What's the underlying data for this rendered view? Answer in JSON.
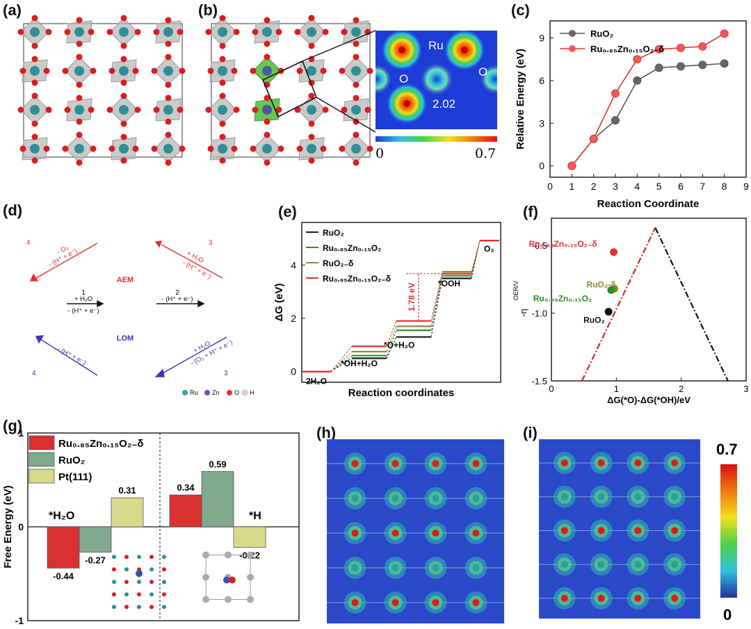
{
  "panels": {
    "a": {
      "label": "(a)"
    },
    "b": {
      "label": "(b)",
      "atom_ru": "Ru",
      "atom_o1": "O",
      "atom_o2": "O",
      "bond_length": "2.02",
      "scale_min": "0",
      "scale_max": "0.7"
    },
    "d": {
      "label": "(d)",
      "aem": "AEM",
      "lom": "LOM",
      "step1_num": "1",
      "step1_a": "+ H₂O",
      "step1_b": "- (H⁺ + e⁻)",
      "step2_num": "2",
      "step2_a": "- (H⁺ + e⁻)",
      "aem3_num": "3",
      "aem3_a": "+ H₂O",
      "aem3_b": "- (H⁺ + e⁻)",
      "aem4_num": "4",
      "aem4_a": "- O₂",
      "aem4_b": "- (H⁺ + e⁻)",
      "lom3_num": "3",
      "lom3_a": "+ H₂O",
      "lom3_b": "- (O₂ + H⁺ + e⁻)",
      "lom4_num": "4",
      "lom4_a": "- (H⁺ + e⁻)",
      "legend": [
        "Ru",
        "Zn",
        "O",
        "H"
      ]
    },
    "h": {
      "label": "(h)"
    },
    "i": {
      "label": "(i)",
      "scale_max": "0.7",
      "scale_min": "0"
    }
  },
  "chart_data": [
    {
      "id": "c",
      "label": "(c)",
      "type": "line",
      "xlabel": "Reaction Coordinate",
      "ylabel": "Relative Energy (eV)",
      "xlim": [
        0,
        9
      ],
      "ylim": [
        -0.8,
        10.2
      ],
      "xticks": [
        0,
        1,
        2,
        3,
        4,
        5,
        6,
        7,
        8,
        9
      ],
      "yticks": [
        0,
        3,
        6,
        9
      ],
      "series": [
        {
          "name": "RuO₂",
          "color": "#555555",
          "x": [
            1,
            2,
            3,
            4,
            5,
            6,
            7,
            8
          ],
          "y": [
            0,
            1.9,
            3.2,
            6.0,
            6.9,
            7.0,
            7.1,
            7.2
          ]
        },
        {
          "name": "Ru₀.₈₅Zn₀.₁₅O₂₋δ",
          "color": "#e83030",
          "x": [
            1,
            2,
            3,
            4,
            5,
            6,
            7,
            8
          ],
          "y": [
            0,
            1.9,
            5.1,
            7.5,
            8.2,
            8.3,
            8.4,
            9.3
          ]
        }
      ],
      "legend": "top-left"
    },
    {
      "id": "e",
      "label": "(e)",
      "type": "line",
      "xlabel": "Reaction coordinates",
      "ylabel": "ΔG (eV)",
      "ylim": [
        -0.4,
        5.6
      ],
      "yticks": [
        0,
        2,
        4
      ],
      "steps": [
        "2H₂O",
        "*OH+H₂O",
        "*O+H₂O",
        "*OOH",
        "O₂"
      ],
      "series": [
        {
          "name": "RuO₂",
          "color": "#1a1a1a",
          "y": [
            0,
            0.5,
            1.3,
            3.5,
            4.92
          ]
        },
        {
          "name": "Ru₀.₈₅Zn₀.₁₅O₂",
          "color": "#2e8b2e",
          "y": [
            0,
            0.6,
            1.55,
            3.6,
            4.92
          ]
        },
        {
          "name": "RuO₂₋δ",
          "color": "#8c8a2a",
          "y": [
            0,
            0.75,
            1.7,
            3.75,
            4.92
          ]
        },
        {
          "name": "Ru₀.₈₅Zn₀.₁₅O₂₋δ",
          "color": "#e03030",
          "y": [
            0,
            0.95,
            1.9,
            3.68,
            4.92
          ]
        }
      ],
      "annotation": "1.78 eV"
    },
    {
      "id": "f",
      "label": "(f)",
      "type": "scatter",
      "xlabel": "ΔG(*O)-ΔG(*OH)/eV",
      "ylabel": "-η",
      "ylabel_sup": "OER/V",
      "xlim": [
        0,
        3
      ],
      "ylim": [
        -1.5,
        -0.3
      ],
      "xticks": [
        0,
        1,
        2,
        3
      ],
      "yticks": [
        -0.5,
        -1.0,
        -1.5
      ],
      "ytick_labels": [
        "-0.5",
        "-1.0",
        "-1.5"
      ],
      "volcano": {
        "peak": [
          1.6,
          -0.37
        ],
        "left_end": [
          0.47,
          -1.5
        ],
        "right_end": [
          2.72,
          -1.5
        ]
      },
      "points": [
        {
          "name": "Ru₀.₈₅Zn₀.₁₅O₂₋δ",
          "x": 0.96,
          "y": -0.55,
          "color": "#e53030"
        },
        {
          "name": "RuO₂-δ",
          "x": 0.97,
          "y": -0.82,
          "color": "#8c8a20"
        },
        {
          "name": "Ru₀.₈₅Zn₀.₁₅O₂",
          "x": 0.92,
          "y": -0.83,
          "color": "#2e8b2e"
        },
        {
          "name": "RuO₂",
          "x": 0.88,
          "y": -0.99,
          "color": "#111111"
        }
      ]
    },
    {
      "id": "g",
      "label": "(g)",
      "type": "bar",
      "ylabel": "Free Energy (eV)",
      "ylim": [
        -1,
        1
      ],
      "yticks": [
        -1,
        0,
        1
      ],
      "groups": [
        "*H₂O",
        "*H"
      ],
      "series": [
        {
          "name": "Ru₀.₈₅Zn₀.₁₅O₂₋δ",
          "color": "#d93030",
          "values": [
            -0.44,
            0.34
          ]
        },
        {
          "name": "RuO₂",
          "color": "#7fa88c",
          "values": [
            -0.27,
            0.59
          ]
        },
        {
          "name": "Pt(111)",
          "color": "#d9d98a",
          "values": [
            0.31,
            -0.22
          ]
        }
      ],
      "value_labels": [
        "-0.44",
        "-0.27",
        "0.31",
        "0.34",
        "0.59",
        "-0.22"
      ]
    }
  ]
}
